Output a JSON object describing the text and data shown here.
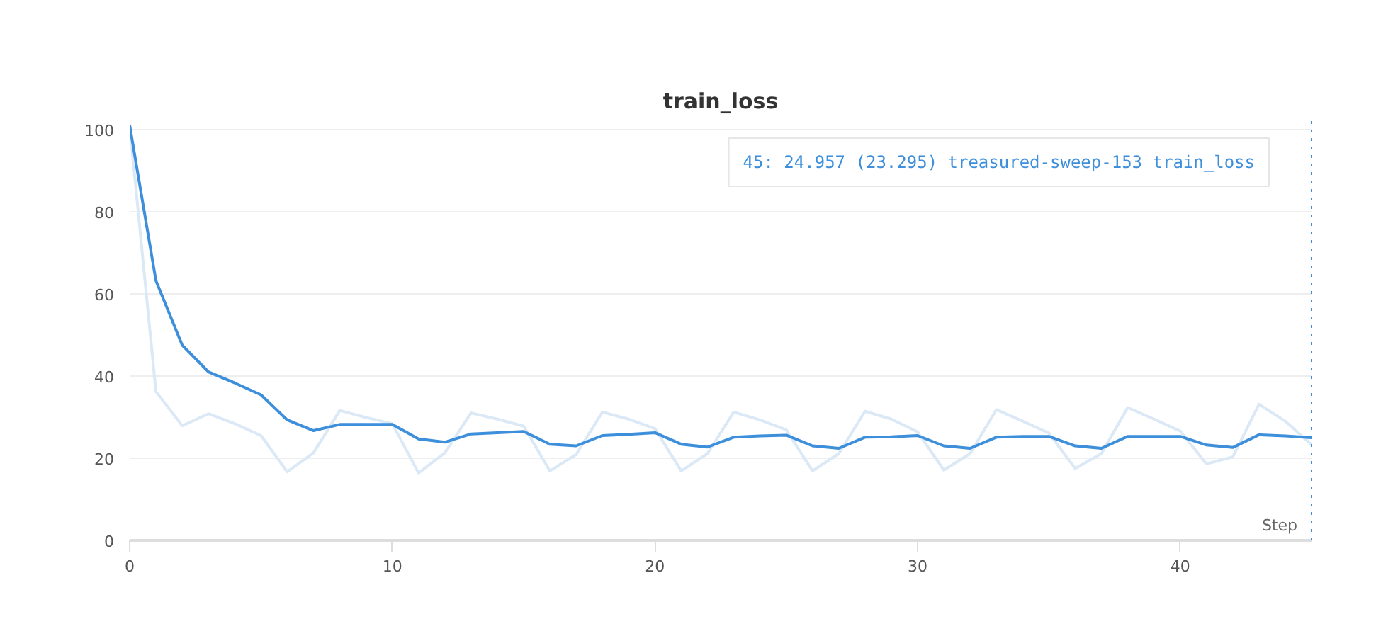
{
  "chart_data": {
    "type": "line",
    "title": "train_loss",
    "xlabel": "Step",
    "x": [
      0,
      1,
      2,
      3,
      4,
      5,
      6,
      7,
      8,
      9,
      10,
      11,
      12,
      13,
      14,
      15,
      16,
      17,
      18,
      19,
      20,
      21,
      22,
      23,
      24,
      25,
      26,
      27,
      28,
      29,
      30,
      31,
      32,
      33,
      34,
      35,
      36,
      37,
      38,
      39,
      40,
      41,
      42,
      43,
      44,
      45
    ],
    "series": [
      {
        "color": "#dbe8f6",
        "values": [
          101,
          36.2,
          27.9,
          30.8,
          28.4,
          25.5,
          16.7,
          21.3,
          31.6,
          29.9,
          28.4,
          16.4,
          21.3,
          31,
          29.5,
          27.8,
          16.9,
          20.9,
          31.2,
          29.5,
          27.2,
          16.9,
          21.1,
          31.2,
          29.3,
          26.9,
          16.9,
          21.1,
          31.4,
          29.5,
          26.4,
          17.1,
          21.1,
          31.8,
          29,
          26.1,
          17.5,
          21.1,
          32.3,
          29.5,
          26.6,
          18.6,
          20.3,
          33.1,
          29,
          23.3
        ]
      },
      {
        "color": "#3d8fdb",
        "values": [
          101,
          63.2,
          47.5,
          41,
          38.3,
          35.4,
          29.3,
          26.7,
          28.2,
          28.2,
          28.2,
          24.7,
          23.9,
          25.9,
          26.2,
          26.5,
          23.4,
          23,
          25.5,
          25.8,
          26.2,
          23.4,
          22.7,
          25.1,
          25.4,
          25.6,
          23,
          22.4,
          25.1,
          25.2,
          25.5,
          23,
          22.4,
          25.1,
          25.3,
          25.3,
          23,
          22.4,
          25.3,
          25.3,
          25.3,
          23.2,
          22.6,
          25.7,
          25.4,
          25
        ]
      }
    ],
    "annotations": [
      "45: 24.957 (23.295) treasured-sweep-153 train_loss"
    ],
    "ref_lines": [
      {
        "axis": "x",
        "value": 45,
        "color": "#3d8fdb",
        "line_style": "dotted"
      }
    ],
    "xlim": [
      0,
      45
    ],
    "xticks": [
      0,
      10,
      20,
      30,
      40
    ],
    "ylim": [
      0,
      102
    ],
    "yticks": [
      0,
      20,
      40,
      60,
      80,
      100
    ],
    "grid": "y",
    "marker": "none",
    "line_style": "solid"
  }
}
